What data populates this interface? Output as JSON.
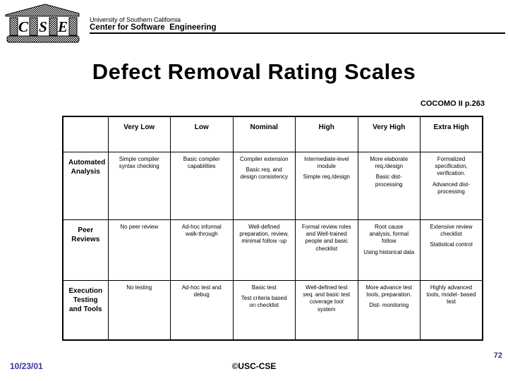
{
  "header": {
    "org": "University of Southern California",
    "dept": "Center for Software  Engineering"
  },
  "title": "Defect Removal Rating Scales",
  "reference": "COCOMO II p.263",
  "logo": {
    "letters": [
      "C",
      "S",
      "E"
    ],
    "icon": "temple-icon"
  },
  "table": {
    "columns": [
      "Very Low",
      "Low",
      "Nominal",
      "High",
      "Very High",
      "Extra High"
    ],
    "rows": [
      {
        "label": "Automated Analysis",
        "cells": [
          [
            "Simple compiler syntax checking"
          ],
          [
            "Basic compiler capabilities"
          ],
          [
            "Compiler extension",
            "Basic req. and design consistency"
          ],
          [
            "Intermediate-level module",
            "Simple req./design"
          ],
          [
            "More elaborate req./design",
            "Basic dist-processing"
          ],
          [
            "Formalized specification, verification.",
            "Advanced dist-processing"
          ]
        ]
      },
      {
        "label": "Peer Reviews",
        "cells": [
          [
            "No peer review"
          ],
          [
            "Ad-hoc informal walk-through"
          ],
          [
            "Well-defined preparation, review, minimal follow -up"
          ],
          [
            "Formal review roles and Well-trained people and basic checklist"
          ],
          [
            "Root cause analysis, formal follow",
            "Using historical data"
          ],
          [
            "Extensive review checklist",
            "Statistical control"
          ]
        ]
      },
      {
        "label": "Execution Testing and Tools",
        "cells": [
          [
            "No testing"
          ],
          [
            "Ad-hoc test and debug"
          ],
          [
            "Basic test",
            "Test criteria based on checklist"
          ],
          [
            "Well-defined test seq. and basic test coverage tool system"
          ],
          [
            "More advance test tools, preparation.",
            "Dist- monitoring"
          ],
          [
            "Highly advanced tools, model- based test"
          ]
        ]
      }
    ]
  },
  "footer": {
    "date": "10/23/01",
    "copyright": "©USC-CSE",
    "page": "72"
  },
  "colors": {
    "accent_blue": "#333399",
    "text": "#000000",
    "background": "#ffffff"
  }
}
